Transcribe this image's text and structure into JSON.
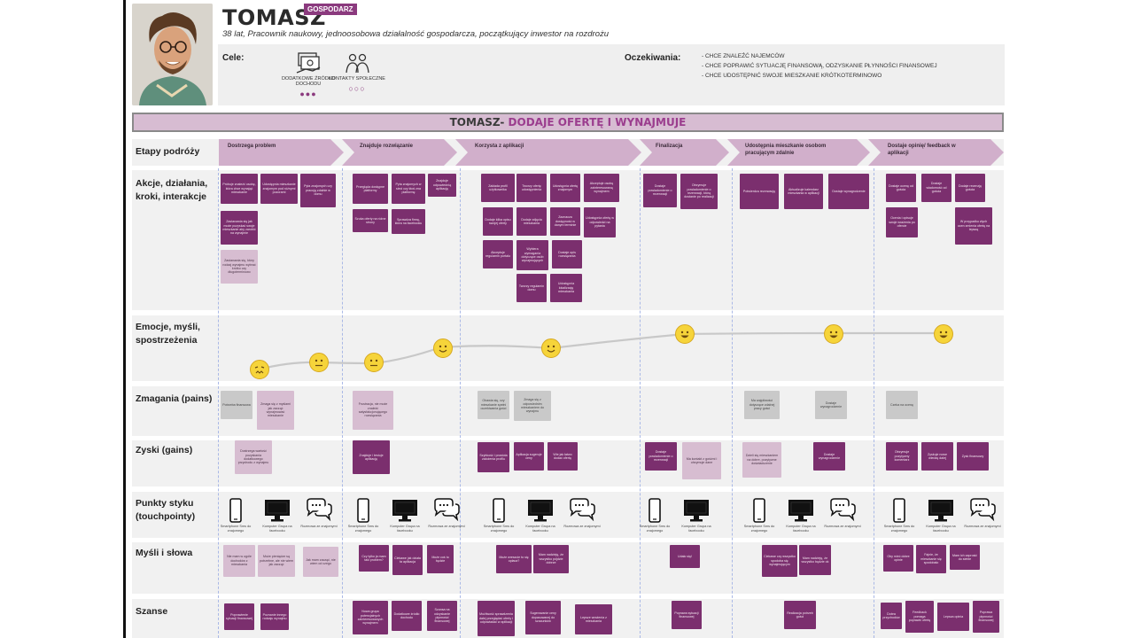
{
  "persona": {
    "name": "TOMASZ",
    "role_badge": "GOSPODARZ",
    "subtitle": "38 lat, Pracownik naukowy, jednoosobowa działalność gospodarcza, początkujący inwestor na rozdrożu",
    "photo_icon": "person-photo"
  },
  "goals": {
    "label": "Cele:",
    "items": [
      {
        "label": "DODATKOWE ŹRÓDŁO DOCHODU",
        "icon": "money-icon",
        "dots": "●●●"
      },
      {
        "label": "KONTAKTY SPOŁECZNE",
        "icon": "people-icon",
        "dots": "○○○"
      }
    ]
  },
  "expectations": {
    "label": "Oczekiwania:",
    "items": [
      "- CHCE ZNALEŹĆ NAJEMCÓW",
      "- CHCE POPRAWIĆ SYTUACJĘ FINANSOWĄ, ODZYSKANIE PŁYNNOŚCI FINANSOWEJ",
      "- CHCE UDOSTĘPNIĆ SWOJE MIESZKANIE KRÓTKOTERMINOWO"
    ]
  },
  "banner": {
    "prefix": "TOMASZ-",
    "highlight": " DODAJE OFERTĘ I WYNAJMUJE"
  },
  "row_labels": {
    "stages": "Etapy podróży",
    "actions": "Akcje, działania, kroki, interakcje",
    "emotions": "Emocje, myśli, spostrzeżenia",
    "pains": "Zmagania (pains)",
    "gains": "Zyski (gains)",
    "touchpoints": "Punkty styku (touchpointy)",
    "thoughts": "Myśli i słowa",
    "opportunities": "Szanse"
  },
  "stages": [
    "Dostrzega problem",
    "Znajduje rozwiązanie",
    "Korzysta z aplikacji",
    "Finalizacja",
    "Udostępnia mieszkanie osobom pracującym zdalnie",
    "Dostaje opinię/ feedback w aplikacji"
  ],
  "actions": [
    "Próbuje znaleźć osobę, która chce wynająć mieszkanie",
    "Udostępnia mieszkanie znajomym pod róźnymi pozorami",
    "Pyta znajomych czy pracują zdalnie w domu",
    "Zastanawia się jak może pozyskać swoje mieszkanie aby zarobić na wynajmie",
    "Zastanawia się, który rodzaj wynajmu wybrać krótko czy długoterminowo",
    "Przegląda dostępne platformy",
    "Pyta znajomych w sieci czy ktoś zna platformę",
    "Szuka oferty na różne strony",
    "Sprawdza firmę, która na facebooku",
    "Znajduje odpowiednią aplikację",
    "Zakłada profil użytkownika",
    "Tworzy ofertę udostępnienia",
    "Udostępnia ofertę znajomym",
    "Akceptuje osobę zainteresowaną wynajmem",
    "Dodaje kilka opisu swojej oferty",
    "Dodaje zdjęcia mieszkania",
    "Zaznacza dostępność w danym terminie",
    "Udostępnia ofertę w odpowiedzi na pytania",
    "Akceptuje regulamin portalu",
    "Wybiera wymagania dotyczące osób wynajmujących",
    "Dostaje opis rozwiązania",
    "Tworzy regulamin domu",
    "Udostępnia lokalizację mieszkania",
    "Dostaje powiadomienie o rezerwacji",
    "Otrzymuje powiadomienie o rezerwacji, którą dostanie po realizacji",
    "Potwierdza rezerwację",
    "Aktualizuje kalendarz mieszkania w aplikacji",
    "Dostaje wynagrodzenie",
    "Dostaje ocenę od gościa",
    "Dostaje wiadomość od gościa",
    "Dodaje recenzję gościa",
    "Ocenia i opisuje swoje wrażenia po ofercie",
    "W przypadku złych ocen zmienia ofertę na lepszą"
  ],
  "emoji_icon": "smiley-face-icon",
  "pains": [
    "Potrzeba finansowa",
    "Zmaga się z myślami jak zacząć wynajmować mieszkanie",
    "Frustracja, nie może znaleźć satysfakcjonującego rozwiązania",
    "Obawia się, czy mieszkanie spełni oczekiwania gości",
    "Zmaga się z odpowiednim mieszkaniem do wynajmu",
    "Ma wątpliwości dotyczące zdalnej pracy gości",
    "Dostaje wynagrodzenie",
    "Czeka na ocenę"
  ],
  "gains": [
    "Dostrzega wartość pozyskania dodatkowego przychodu z wynajmu",
    "Znajduje i testuje aplikację",
    "Szybkość i prostota założenia profilu",
    "Aplikacja sugeruje ceny",
    "Wie jak łatwo dodać ofertę",
    "Dostaje powiadomienie o rezerwacji",
    "Ma kontakt z gośćmi i otrzymuje dane",
    "Dzieli się mieszkaniem na dobre, pozytywne doświadczenie",
    "Dostaje wynagrodzenie",
    "Otrzymuje pozytywny komentarz",
    "Zyskuje nowe wiedzę dalej",
    "Zysk finansowy"
  ],
  "touchpoint_groups": [
    [
      {
        "icon": "smartphone-icon",
        "label": "Smartphone Sms do znajomego"
      },
      {
        "icon": "computer-icon",
        "label": "Komputer Grupa na facebooku"
      },
      {
        "icon": "chat-icon",
        "label": "Rozmowa ze znajomymi"
      }
    ],
    [
      {
        "icon": "smartphone-icon",
        "label": "Smartphone Sms do znajomego"
      },
      {
        "icon": "computer-icon",
        "label": "Komputer Grupa na facebooku"
      },
      {
        "icon": "chat-icon",
        "label": "Rozmowa ze znajomymi"
      }
    ],
    [
      {
        "icon": "smartphone-icon",
        "label": "Smartphone Sms do znajomego"
      },
      {
        "icon": "computer-icon",
        "label": "Komputer Grupa na facebooku"
      },
      {
        "icon": "chat-icon",
        "label": "Rozmowa ze znajomymi"
      }
    ],
    [
      {
        "icon": "smartphone-icon",
        "label": "Smartphone Sms do znajomego"
      },
      {
        "icon": "computer-icon",
        "label": "Komputer Grupa na facebooku"
      }
    ],
    [
      {
        "icon": "smartphone-icon",
        "label": "Smartphone Sms do znajomego"
      },
      {
        "icon": "computer-icon",
        "label": "Komputer Grupa na facebooku"
      },
      {
        "icon": "chat-icon",
        "label": "Rozmowa ze znajomymi"
      }
    ],
    [
      {
        "icon": "smartphone-icon",
        "label": "Smartphone Sms do znajomego"
      },
      {
        "icon": "computer-icon",
        "label": "Komputer Grupa na facebooku"
      },
      {
        "icon": "chat-icon",
        "label": "Rozmowa ze znajomymi"
      }
    ]
  ],
  "thoughts": [
    "Nie mam w ogóle dochodów z mieszkania",
    "Może pieniądze są potrzebne, ale nie wiem jak zacząć",
    "Jak mam zacząć, nie wiem od czego",
    "Czy tylko ja mam taki problem?",
    "Ciekawe jak działa ta aplikacja",
    "Może coś to będzie",
    "Może wreszcie to się opłaca?",
    "Mam nadzieję, że wszystko pójdzie dobrze",
    "Udało się!",
    "Ciekawe czy wszystko spodoba się wynajmującym",
    "Mam nadzieję, że wszystko będzie ok",
    "Oby mieć dobre opinie",
    "Fajnie, że mieszkanie się spodobało",
    "Mam ich zaprosić do siebie"
  ],
  "opportunities": [
    "Poprawienie sytuacji finansowej",
    "Poznanie innego rodzaju wynajmu",
    "Nowa grupa potencjalnych zainteresowanych wynajmem",
    "Dodatkowe źródło dochodu",
    "Szansa na odzyskanie płynności finansowej",
    "Możliwość sprawdzenia dalej przeglądać oferty i odpowiadać w aplikacji",
    "Sugerowanie ceny dopasowanej do szacunków",
    "Lepsze wrażenia z mieszkania",
    "Poprawa sytuacji finansowej",
    "Realizacja potrzeb gości",
    "Dobra przychodów",
    "Feedback pomaga poprawić ofertę",
    "Lepsza opinia",
    "Poprawa płynności finansowej"
  ]
}
